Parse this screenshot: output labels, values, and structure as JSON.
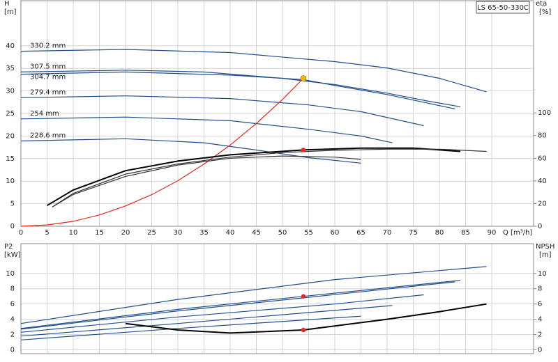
{
  "title": "LS 65-50-330C",
  "chart_data": [
    {
      "type": "line",
      "y_label": "H",
      "y_unit": "[m]",
      "y2_label": "eta",
      "y2_unit": "[%]",
      "x_label": "Q [m³/h]",
      "xlim": [
        0,
        98
      ],
      "xticks": [
        0,
        5,
        10,
        15,
        20,
        25,
        30,
        35,
        40,
        45,
        50,
        55,
        60,
        65,
        70,
        75,
        80,
        85,
        90
      ],
      "ylim": [
        0,
        50
      ],
      "yticks": [
        0,
        5,
        10,
        15,
        20,
        25,
        30,
        35,
        40
      ],
      "y2lim": [
        0,
        199
      ],
      "y2ticks": [
        0,
        20,
        40,
        60,
        80,
        100
      ],
      "grid": true,
      "series": [
        {
          "name": "330.2 mm",
          "color": "#1f4e8c",
          "x": [
            0,
            20,
            40,
            60,
            70,
            80,
            89
          ],
          "values": [
            38.8,
            39.2,
            38.5,
            36.5,
            35.1,
            32.8,
            29.8
          ]
        },
        {
          "name": "307.5 mm",
          "color": "#1f4e8c",
          "x": [
            0,
            20,
            35,
            50,
            60,
            70,
            78,
            84
          ],
          "values": [
            34.2,
            34.6,
            34.2,
            32.8,
            31.4,
            29.5,
            27.7,
            26.5
          ]
        },
        {
          "name": "304.7 mm",
          "color": "#1f4e8c",
          "x": [
            0,
            20,
            40,
            54,
            60,
            70,
            83
          ],
          "values": [
            33.7,
            34.2,
            33.5,
            32.5,
            31.2,
            29.2,
            26.0
          ]
        },
        {
          "name": "279.4 mm",
          "color": "#1f4e8c",
          "x": [
            0,
            20,
            40,
            55,
            65,
            77
          ],
          "values": [
            28.5,
            28.9,
            28.3,
            26.9,
            25.4,
            22.3
          ]
        },
        {
          "name": "254 mm",
          "color": "#1f4e8c",
          "x": [
            0,
            20,
            40,
            55,
            65,
            71
          ],
          "values": [
            23.8,
            24.2,
            23.4,
            21.5,
            20.0,
            18.5
          ]
        },
        {
          "name": "228.6 mm",
          "color": "#1f4e8c",
          "x": [
            0,
            20,
            35,
            45,
            55,
            65
          ],
          "values": [
            18.9,
            19.4,
            18.5,
            16.9,
            15.2,
            14.0
          ]
        },
        {
          "color": "#e8261f",
          "x": [
            0,
            5,
            10,
            15,
            20,
            25,
            30,
            35,
            40,
            45,
            50,
            54
          ],
          "values": [
            0,
            0.3,
            1.1,
            2.5,
            4.5,
            7.0,
            10.1,
            13.8,
            18.0,
            22.8,
            28.1,
            32.8
          ]
        },
        {
          "color": "#000000",
          "axis": "y2",
          "x": [
            5,
            10,
            20,
            30,
            40,
            54,
            65,
            75,
            84
          ],
          "values": [
            18.3,
            32,
            49,
            57.5,
            63,
            67.3,
            69,
            69,
            66
          ]
        },
        {
          "color": "#333333",
          "axis": "y2",
          "x": [
            6,
            10,
            20,
            30,
            40,
            50,
            60,
            70,
            80,
            89
          ],
          "values": [
            17,
            29,
            46,
            55,
            61,
            65,
            67,
            68,
            68,
            66
          ]
        },
        {
          "color": "#333333",
          "axis": "y2",
          "x": [
            6,
            10,
            20,
            30,
            40,
            50,
            60,
            65
          ],
          "values": [
            17,
            28,
            44,
            54,
            60,
            62,
            61,
            59
          ]
        }
      ],
      "points": [
        {
          "color": "#f5b800",
          "x": 54,
          "value": 32.8
        },
        {
          "color": "#e8261f",
          "x": 54,
          "value": 67.3,
          "axis": "y2"
        }
      ]
    },
    {
      "type": "line",
      "y_label": "P2",
      "y_unit": "[kW]",
      "y2_label": "NPSH",
      "y2_unit": "[m]",
      "xlim": [
        0,
        98
      ],
      "ylim": [
        -0.5,
        13.9
      ],
      "yticks": [
        0,
        2,
        4,
        6,
        8,
        10
      ],
      "y2lim": [
        -0.5,
        13.9
      ],
      "y2ticks": [
        0,
        2,
        4,
        6,
        8,
        10
      ],
      "grid": true,
      "series": [
        {
          "color": "#1f4e8c",
          "x": [
            0,
            30,
            60,
            89
          ],
          "values": [
            3.45,
            6.6,
            9.2,
            10.9
          ]
        },
        {
          "color": "#1f4e8c",
          "x": [
            0,
            30,
            54,
            84
          ],
          "values": [
            2.8,
            5.3,
            7.0,
            9.1
          ]
        },
        {
          "color": "#1f4e8c",
          "x": [
            0,
            30,
            54,
            83
          ],
          "values": [
            2.7,
            5.1,
            6.8,
            8.9
          ]
        },
        {
          "color": "#1f4e8c",
          "x": [
            0,
            30,
            60,
            77
          ],
          "values": [
            2.3,
            4.3,
            6.0,
            7.2
          ]
        },
        {
          "color": "#1f4e8c",
          "x": [
            0,
            30,
            71
          ],
          "values": [
            1.8,
            3.45,
            5.8
          ]
        },
        {
          "color": "#1f4e8c",
          "x": [
            0,
            30,
            65
          ],
          "values": [
            1.3,
            2.8,
            4.4
          ]
        },
        {
          "color": "#000000",
          "axis": "y2",
          "x": [
            20,
            30,
            40,
            54,
            70,
            80,
            89
          ],
          "values": [
            3.45,
            2.6,
            2.2,
            2.6,
            4.0,
            5.0,
            6.0
          ]
        }
      ],
      "points": [
        {
          "color": "#e8261f",
          "x": 54,
          "value": 7.0
        },
        {
          "color": "#e8261f",
          "x": 54,
          "value": 2.6,
          "axis": "y2"
        }
      ]
    }
  ]
}
